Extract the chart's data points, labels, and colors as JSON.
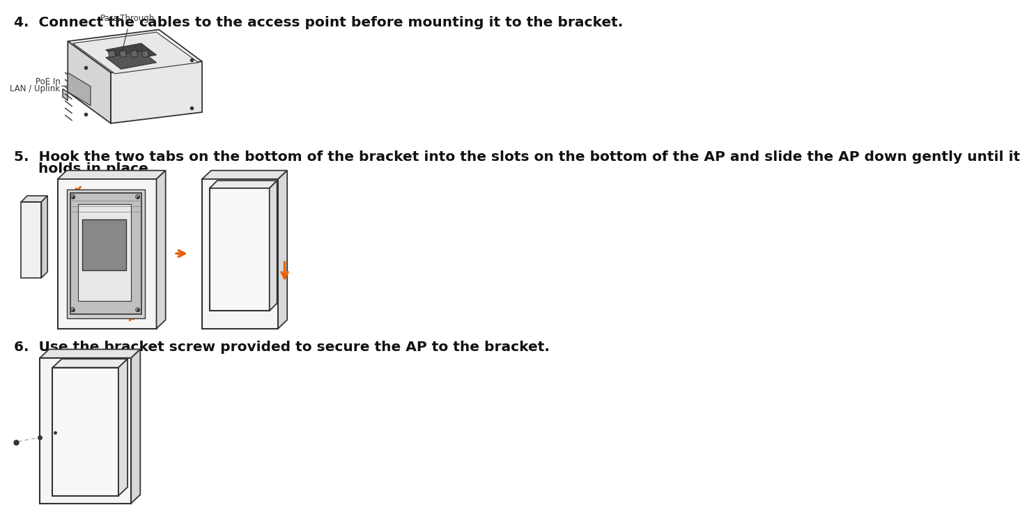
{
  "bg_color": "#ffffff",
  "text_color": "#111111",
  "orange_color": "#e8610a",
  "gray_color": "#aaaaaa",
  "dark_color": "#1a1a1a",
  "line_color": "#333333",
  "step4_text": "4.  Connect the cables to the access point before mounting it to the bracket.",
  "step5_line1": "5.  Hook the two tabs on the bottom of the bracket into the slots on the bottom of the AP and slide the AP down gently until it",
  "step5_line2": "     holds in place.",
  "step6_text": "6.  Use the bracket screw provided to secure the AP to the bracket.",
  "label_passthrough": "Pass-Through",
  "label_poe": "PoE In",
  "label_lan": "LAN / Uplink",
  "font_size_body": 14.5,
  "font_size_label": 8.5,
  "fig_width": 13.92,
  "fig_height": 10.15
}
